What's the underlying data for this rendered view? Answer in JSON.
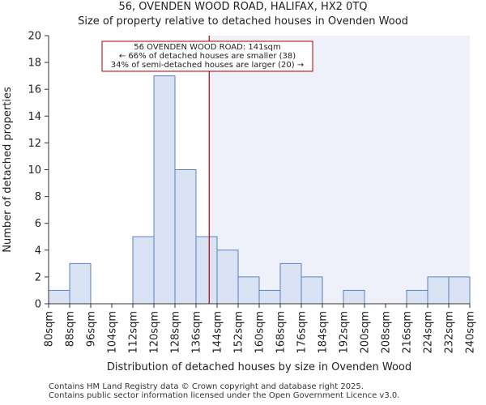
{
  "header": {
    "title": "56, OVENDEN WOOD ROAD, HALIFAX, HX2 0TQ",
    "subtitle": "Size of property relative to detached houses in Ovenden Wood"
  },
  "footer": {
    "line1": "Contains HM Land Registry data © Crown copyright and database right 2025.",
    "line2": "Contains public sector information licensed under the Open Government Licence v3.0."
  },
  "chart_data": {
    "type": "bar",
    "title": "Size of property relative to detached houses in Ovenden Wood",
    "xlabel": "Distribution of detached houses by size in Ovenden Wood",
    "ylabel": "Number of detached properties",
    "bin_edges": [
      80,
      88,
      96,
      104,
      112,
      120,
      128,
      136,
      144,
      152,
      160,
      168,
      176,
      184,
      192,
      200,
      208,
      216,
      224,
      232,
      240
    ],
    "x_tick_labels": [
      "80sqm",
      "88sqm",
      "96sqm",
      "104sqm",
      "112sqm",
      "120sqm",
      "128sqm",
      "136sqm",
      "144sqm",
      "152sqm",
      "160sqm",
      "168sqm",
      "176sqm",
      "184sqm",
      "192sqm",
      "200sqm",
      "208sqm",
      "216sqm",
      "224sqm",
      "232sqm",
      "240sqm"
    ],
    "values": [
      1,
      3,
      0,
      0,
      5,
      17,
      10,
      5,
      4,
      2,
      1,
      3,
      2,
      0,
      1,
      0,
      0,
      1,
      2,
      2
    ],
    "ylim": [
      0,
      20
    ],
    "yticks": [
      0,
      2,
      4,
      6,
      8,
      10,
      12,
      14,
      16,
      18,
      20
    ],
    "marker": {
      "value": 141,
      "color": "#aa0000"
    },
    "annotation": {
      "line1": "56 OVENDEN WOOD ROAD: 141sqm",
      "line2": "← 66% of detached houses are smaller (38)",
      "line3": "34% of semi-detached houses are larger (20) →"
    },
    "colors": {
      "bar_fill": "#dae3f3",
      "bar_stroke": "#5a82c2",
      "shade": "#eef1fa",
      "axis": "#333333"
    }
  }
}
